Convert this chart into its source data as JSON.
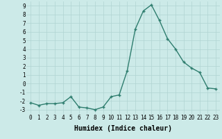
{
  "x": [
    0,
    1,
    2,
    3,
    4,
    5,
    6,
    7,
    8,
    9,
    10,
    11,
    12,
    13,
    14,
    15,
    16,
    17,
    18,
    19,
    20,
    21,
    22,
    23
  ],
  "y": [
    -2.2,
    -2.5,
    -2.3,
    -2.3,
    -2.2,
    -1.5,
    -2.7,
    -2.8,
    -3.0,
    -2.7,
    -1.5,
    -1.3,
    1.5,
    6.3,
    8.4,
    9.1,
    7.3,
    5.2,
    4.0,
    2.5,
    1.8,
    1.3,
    -0.5,
    -0.6
  ],
  "line_color": "#2e7d6e",
  "marker": "+",
  "markersize": 3,
  "linewidth": 1.0,
  "markeredgewidth": 1.0,
  "bg_color": "#cceae8",
  "grid_color": "#b0d4d2",
  "xlabel": "Humidex (Indice chaleur)",
  "xlabel_fontsize": 7,
  "tick_fontsize": 5.5,
  "ylim": [
    -3.5,
    9.5
  ],
  "xlim": [
    -0.5,
    23.5
  ],
  "yticks": [
    -3,
    -2,
    -1,
    0,
    1,
    2,
    3,
    4,
    5,
    6,
    7,
    8,
    9
  ],
  "xticks": [
    0,
    1,
    2,
    3,
    4,
    5,
    6,
    7,
    8,
    9,
    10,
    11,
    12,
    13,
    14,
    15,
    16,
    17,
    18,
    19,
    20,
    21,
    22,
    23
  ]
}
